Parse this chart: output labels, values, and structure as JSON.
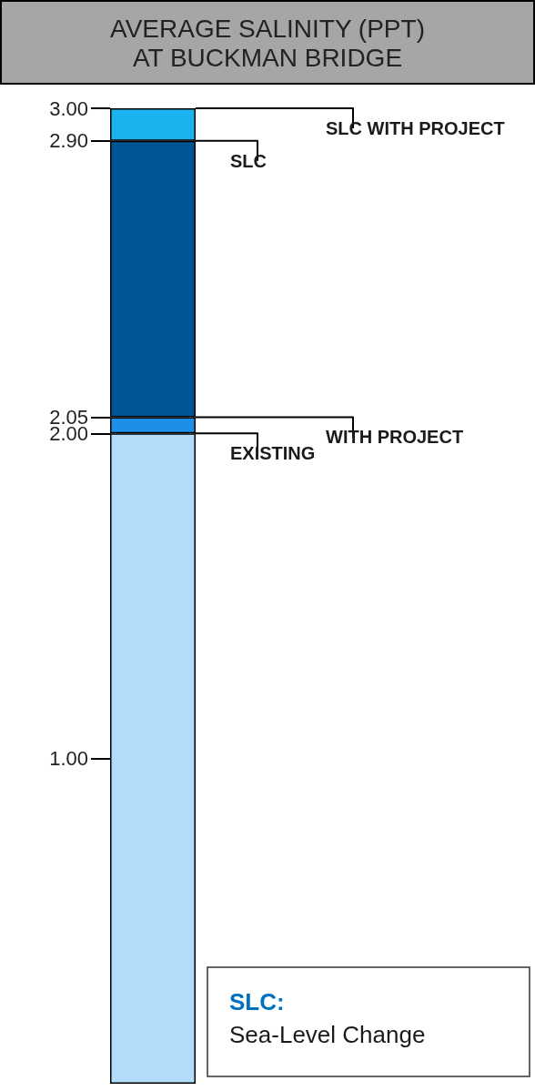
{
  "chart_data": {
    "type": "bar",
    "title": "AVERAGE SALINITY (PPT)\nAT BUCKMAN BRIDGE",
    "categories": [
      null
    ],
    "stacked": true,
    "series": [
      {
        "color": "#b3dcfb",
        "values": [
          2.0
        ]
      },
      {
        "color": "#1e8fe6",
        "values": [
          0.05
        ]
      },
      {
        "color": "#005596",
        "values": [
          0.85
        ]
      },
      {
        "color": "#1ab2ef",
        "values": [
          0.1
        ]
      }
    ],
    "ylim": [
      0,
      3
    ],
    "yticks": [
      {
        "value": 1,
        "label": "1.00"
      },
      {
        "value": 2,
        "label": "2.00"
      },
      {
        "value": 2.05,
        "label": "2.05"
      },
      {
        "value": 2.9,
        "label": "2.90"
      },
      {
        "value": 3,
        "label": "3.00"
      }
    ],
    "grid": false,
    "ref_lines": [
      {
        "axis": "y",
        "value": 3.0,
        "label": "SLC WITH PROJECT",
        "color": "#000000"
      },
      {
        "axis": "y",
        "value": 2.9,
        "label": "SLC",
        "color": "#000000"
      },
      {
        "axis": "y",
        "value": 2.05,
        "label": "WITH PROJECT",
        "color": "#000000"
      },
      {
        "axis": "y",
        "value": 2.0,
        "label": "EXISTING",
        "color": "#000000"
      }
    ],
    "annotations": [
      "SLC:",
      "Sea-Level Change"
    ]
  }
}
